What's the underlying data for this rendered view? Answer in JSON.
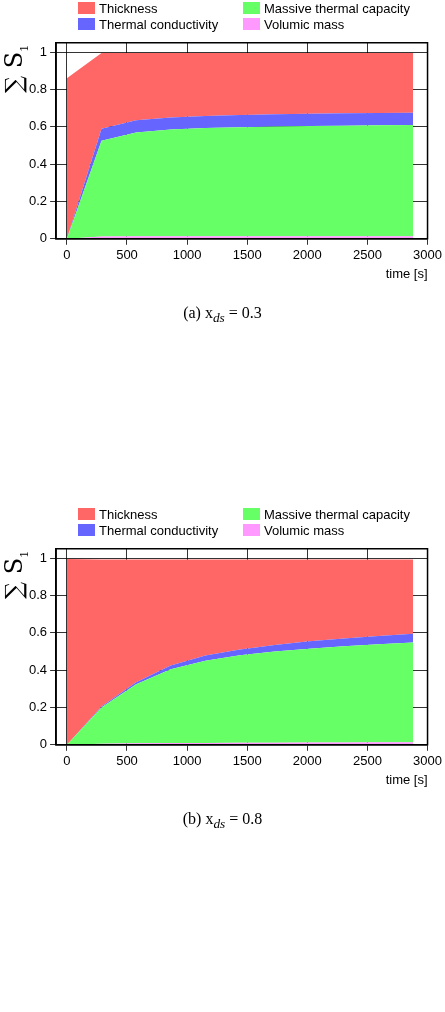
{
  "chart_data": [
    {
      "type": "area",
      "title": "(a) x$_{ds}$ = 0.3",
      "xlabel": "time [s]",
      "ylabel": "∑ S$_{1}$",
      "stacked": true,
      "legend": "top",
      "grid": true,
      "x": [
        0,
        288,
        576,
        864,
        1152,
        1440,
        1728,
        2016,
        2304,
        2592,
        2880
      ],
      "xlim": [
        -90,
        3000
      ],
      "xticks": [
        0,
        500,
        1000,
        1500,
        2000,
        2500,
        3000
      ],
      "ylim": [
        0,
        1.05
      ],
      "yticks": [
        0,
        0.2,
        0.4,
        0.6,
        0.8,
        1
      ],
      "series": [
        {
          "name": "Volumic mass",
          "color": "#ff99ff",
          "values": [
            0,
            0.012,
            0.013,
            0.013,
            0.013,
            0.014,
            0.014,
            0.014,
            0.014,
            0.014,
            0.014
          ]
        },
        {
          "name": "Massive thermal capacity",
          "color": "#66ff66",
          "values": [
            0,
            0.513,
            0.557,
            0.572,
            0.58,
            0.584,
            0.587,
            0.59,
            0.592,
            0.594,
            0.596
          ]
        },
        {
          "name": "Thermal conductivity",
          "color": "#6666ff",
          "values": [
            0,
            0.065,
            0.065,
            0.065,
            0.065,
            0.065,
            0.066,
            0.066,
            0.066,
            0.066,
            0.065
          ]
        },
        {
          "name": "Thickness",
          "color": "#ff6666",
          "values": [
            0.86,
            0.405,
            0.36,
            0.345,
            0.337,
            0.332,
            0.328,
            0.325,
            0.323,
            0.321,
            0.32
          ]
        }
      ]
    },
    {
      "type": "area",
      "title": "(b) x$_{ds}$ = 0.8",
      "xlabel": "time [s]",
      "ylabel": "∑ S$_{1}$",
      "stacked": true,
      "legend": "top",
      "grid": true,
      "x": [
        0,
        288,
        576,
        864,
        1152,
        1440,
        1728,
        2016,
        2304,
        2592,
        2880
      ],
      "xlim": [
        -90,
        3000
      ],
      "xticks": [
        0,
        500,
        1000,
        1500,
        2000,
        2500,
        3000
      ],
      "ylim": [
        0,
        1.05
      ],
      "yticks": [
        0,
        0.2,
        0.4,
        0.6,
        0.8,
        1
      ],
      "series": [
        {
          "name": "Volumic mass",
          "color": "#ff99ff",
          "values": [
            0,
            0.005,
            0.008,
            0.01,
            0.01,
            0.011,
            0.011,
            0.012,
            0.012,
            0.013,
            0.014
          ]
        },
        {
          "name": "Massive thermal capacity",
          "color": "#66ff66",
          "values": [
            0,
            0.195,
            0.317,
            0.395,
            0.44,
            0.469,
            0.489,
            0.503,
            0.516,
            0.525,
            0.534
          ]
        },
        {
          "name": "Thermal conductivity",
          "color": "#6666ff",
          "values": [
            0,
            0.005,
            0.01,
            0.02,
            0.028,
            0.03,
            0.035,
            0.04,
            0.042,
            0.045,
            0.047
          ]
        },
        {
          "name": "Thickness",
          "color": "#ff6666",
          "values": [
            0.995,
            0.788,
            0.658,
            0.568,
            0.515,
            0.483,
            0.458,
            0.438,
            0.423,
            0.41,
            0.398
          ]
        }
      ]
    }
  ]
}
